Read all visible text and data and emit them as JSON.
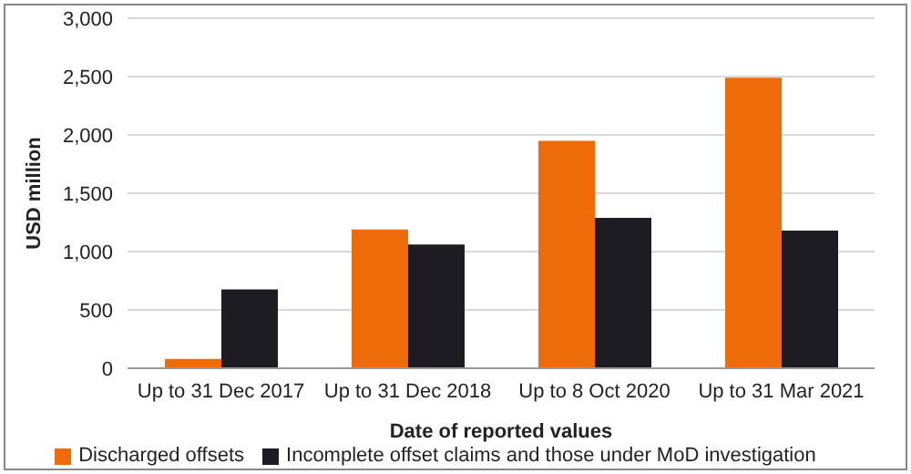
{
  "chart_data": {
    "type": "bar",
    "xlabel": "Date of reported values",
    "ylabel": "USD million",
    "categories": [
      "Up to 31 Dec 2017",
      "Up to 31 Dec 2018",
      "Up to 8 Oct 2020",
      "Up to 31 Mar 2021"
    ],
    "series": [
      {
        "name": "Discharged offsets",
        "color": "#ee6b0a",
        "values": [
          80,
          1190,
          1950,
          2490
        ]
      },
      {
        "name": "Incomplete offset claims and those under MoD investigation",
        "color": "#1c1c22",
        "values": [
          675,
          1060,
          1290,
          1180
        ]
      }
    ],
    "ylim": [
      0,
      3000
    ],
    "yticks": [
      {
        "value": 0,
        "label": "0"
      },
      {
        "value": 500,
        "label": "500"
      },
      {
        "value": 1000,
        "label": "1,000"
      },
      {
        "value": 1500,
        "label": "1,500"
      },
      {
        "value": 2000,
        "label": "2,000"
      },
      {
        "value": 2500,
        "label": "2,500"
      },
      {
        "value": 3000,
        "label": "3,000"
      }
    ],
    "grid": "y",
    "legend": "bottom"
  }
}
